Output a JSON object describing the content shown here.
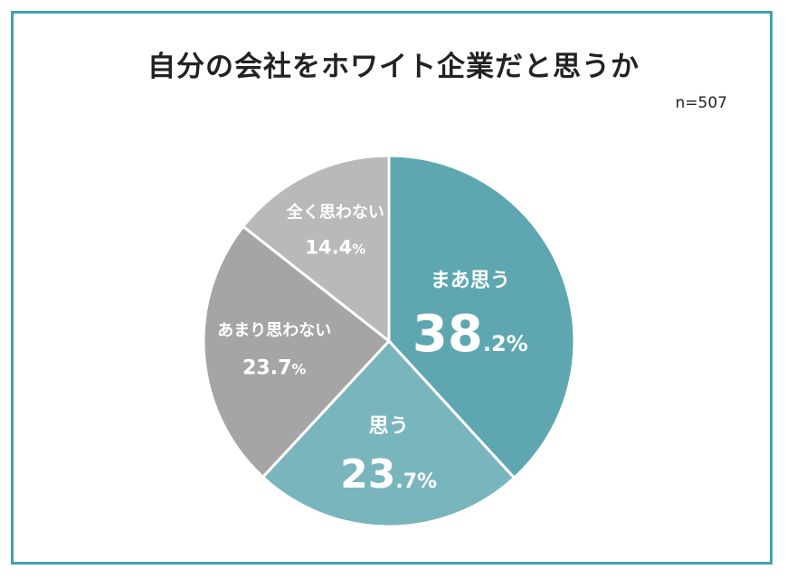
{
  "chart_data": {
    "type": "pie",
    "title": "自分の会社をホワイト企業だと思うか",
    "sample_size": "n=507",
    "start_angle_deg": 0,
    "direction": "clockwise",
    "slices": [
      {
        "label": "まあ思う",
        "value": 38.2,
        "int_part": "38",
        "dec_part": ".2%",
        "color": "#5ea7b1"
      },
      {
        "label": "思う",
        "value": 23.7,
        "int_part": "23",
        "dec_part": ".7%",
        "color": "#79b5bc"
      },
      {
        "label": "あまり思わない",
        "value": 23.7,
        "int_part": "23.7",
        "dec_part": "%",
        "color": "#a5a5a5"
      },
      {
        "label": "全く思わない",
        "value": 14.4,
        "int_part": "14.4",
        "dec_part": "%",
        "color": "#b9b9b9"
      }
    ]
  }
}
